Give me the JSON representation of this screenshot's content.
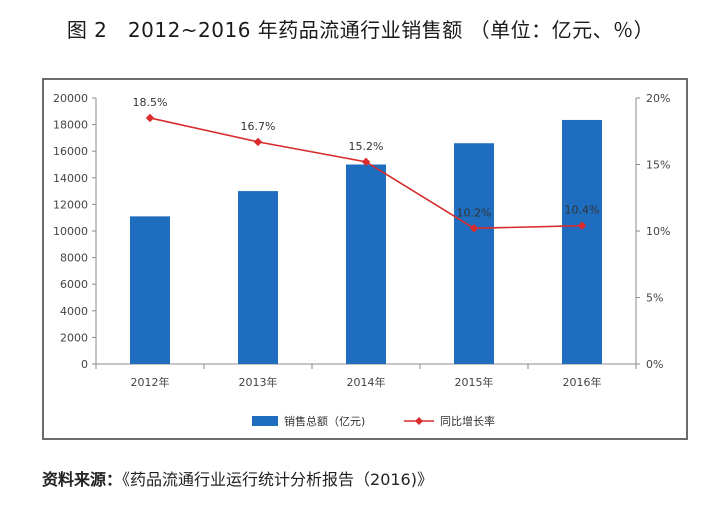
{
  "title": "图 2　2012~2016 年药品流通行业销售额 （单位：亿元、％）",
  "source_label": "资料来源：",
  "source_text": "《药品流通行业运行统计分析报告（2016)》",
  "chart_data": {
    "type": "bar",
    "categories": [
      "2012年",
      "2013年",
      "2014年",
      "2015年",
      "2016年"
    ],
    "series": [
      {
        "name": "销售总额（亿元)",
        "type": "bar",
        "axis": "left",
        "color": "#1f6dbf",
        "values": [
          11100,
          13000,
          15000,
          16600,
          18350
        ]
      },
      {
        "name": "同比增长率",
        "type": "line",
        "axis": "right",
        "color": "#d92b2b",
        "values": [
          18.5,
          16.7,
          15.2,
          10.2,
          10.4
        ],
        "labels": [
          "18.5%",
          "16.7%",
          "15.2%",
          "10.2%",
          "10.4%"
        ]
      }
    ],
    "y_left": {
      "ylim": [
        0,
        20000
      ],
      "ticks": [
        "0",
        "2000",
        "4000",
        "6000",
        "8000",
        "10000",
        "12000",
        "14000",
        "16000",
        "18000",
        "20000"
      ]
    },
    "y_right": {
      "ylim": [
        0,
        20
      ],
      "ticks": [
        "0%",
        "5%",
        "10%",
        "15%",
        "20%"
      ]
    },
    "grid": false,
    "legend": "bottom"
  }
}
